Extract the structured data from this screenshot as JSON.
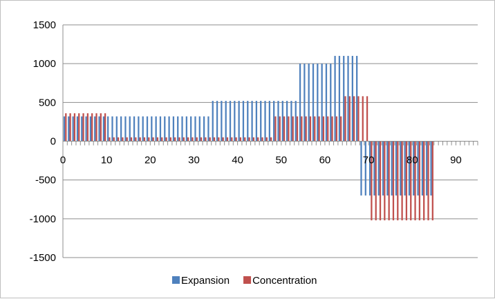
{
  "chart_data": {
    "type": "bar",
    "title": "",
    "xlabel": "",
    "ylabel": "",
    "ylim": [
      -1500,
      1500
    ],
    "xlim": [
      0,
      95
    ],
    "y_ticks": [
      "1500",
      "1000",
      "500",
      "0",
      "-500",
      "-1000",
      "-1500"
    ],
    "x_ticks": [
      "0",
      "10",
      "20",
      "30",
      "40",
      "50",
      "60",
      "70",
      "80",
      "90"
    ],
    "grid": "horizontal",
    "legend_position": "bottom",
    "categories": [
      1,
      2,
      3,
      4,
      5,
      6,
      7,
      8,
      9,
      10,
      11,
      12,
      13,
      14,
      15,
      16,
      17,
      18,
      19,
      20,
      21,
      22,
      23,
      24,
      25,
      26,
      27,
      28,
      29,
      30,
      31,
      32,
      33,
      34,
      35,
      36,
      37,
      38,
      39,
      40,
      41,
      42,
      43,
      44,
      45,
      46,
      47,
      48,
      49,
      50,
      51,
      52,
      53,
      54,
      55,
      56,
      57,
      58,
      59,
      60,
      61,
      62,
      63,
      64,
      65,
      66,
      67,
      68,
      69,
      70,
      71,
      72,
      73,
      74,
      75,
      76,
      77,
      78,
      79,
      80,
      81,
      82,
      83,
      84,
      85
    ],
    "series": [
      {
        "name": "Expansion",
        "color": "#4f81bd",
        "values": [
          320,
          320,
          320,
          320,
          320,
          320,
          320,
          320,
          320,
          320,
          320,
          320,
          320,
          320,
          320,
          320,
          320,
          320,
          320,
          320,
          320,
          320,
          320,
          320,
          320,
          320,
          320,
          320,
          320,
          320,
          320,
          320,
          320,
          320,
          520,
          520,
          520,
          520,
          520,
          520,
          520,
          520,
          520,
          520,
          520,
          520,
          520,
          520,
          520,
          520,
          520,
          520,
          520,
          520,
          1000,
          1000,
          1000,
          1000,
          1000,
          1000,
          1000,
          1000,
          1100,
          1100,
          1100,
          1100,
          1100,
          1100,
          -700,
          -700,
          -700,
          -700,
          -700,
          -700,
          -700,
          -700,
          -700,
          -700,
          -700,
          -700,
          -700,
          -700,
          -700,
          -700,
          -700
        ]
      },
      {
        "name": "Concentration",
        "color": "#c0504d",
        "values": [
          360,
          360,
          360,
          360,
          360,
          360,
          360,
          360,
          360,
          360,
          50,
          50,
          50,
          50,
          50,
          50,
          50,
          50,
          50,
          50,
          50,
          50,
          50,
          50,
          50,
          50,
          50,
          50,
          50,
          50,
          50,
          50,
          50,
          50,
          50,
          50,
          50,
          50,
          50,
          50,
          50,
          50,
          50,
          50,
          50,
          50,
          50,
          50,
          320,
          320,
          320,
          320,
          320,
          320,
          320,
          320,
          320,
          320,
          320,
          320,
          320,
          320,
          320,
          320,
          580,
          580,
          580,
          580,
          580,
          580,
          -1020,
          -1020,
          -1020,
          -1020,
          -1020,
          -1020,
          -1020,
          -1020,
          -1020,
          -1020,
          -1020,
          -1020,
          -1020,
          -1020,
          -1020
        ]
      }
    ]
  }
}
